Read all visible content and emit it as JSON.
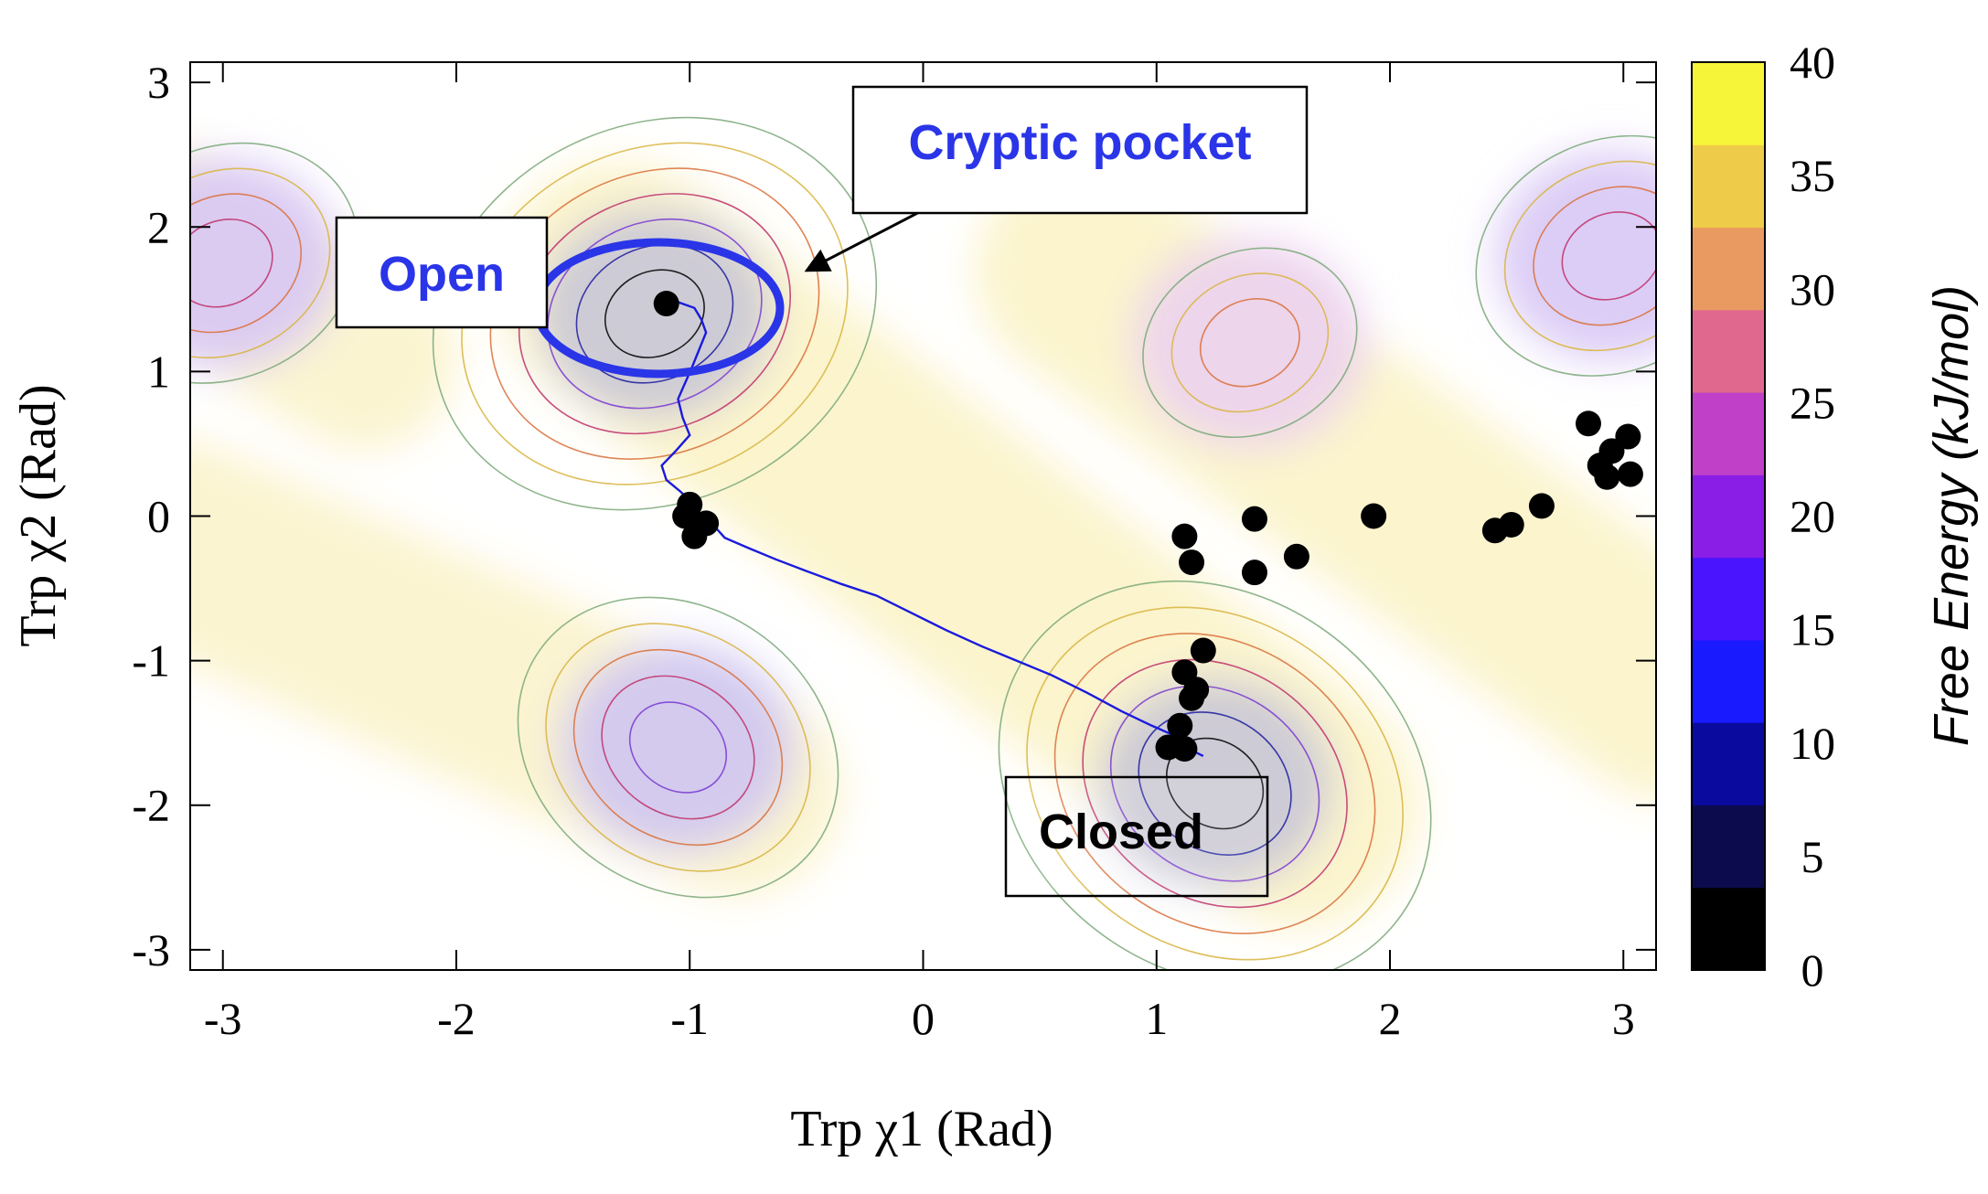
{
  "chart_data": {
    "type": "heatmap",
    "title": "",
    "xlabel": "Trp χ1 (Rad)",
    "ylabel": "Trp χ2 (Rad)",
    "xlim": [
      -3.14,
      3.14
    ],
    "ylim": [
      -3.14,
      3.14
    ],
    "x_ticks": [
      "-3",
      "-2",
      "-1",
      "0",
      "1",
      "2",
      "3"
    ],
    "y_ticks": [
      "-3",
      "-2",
      "-1",
      "0",
      "1",
      "2",
      "3"
    ],
    "colorbar": {
      "label": "Free Energy (kJ/mol)",
      "range": [
        0,
        40
      ],
      "ticks": [
        "0",
        "5",
        "10",
        "15",
        "20",
        "25",
        "30",
        "35",
        "40"
      ],
      "colors": [
        "#000000",
        "#0b0b4d",
        "#0a0a9e",
        "#1a1aff",
        "#4b14ff",
        "#8a1ee6",
        "#c040c8",
        "#e0688e",
        "#e89a60",
        "#eecb48",
        "#f7f53a"
      ]
    },
    "basins": [
      {
        "x": -1.15,
        "y": 1.4,
        "min_energy": 0
      },
      {
        "x": 1.25,
        "y": -1.85,
        "min_energy": 0
      },
      {
        "x": -1.05,
        "y": -1.6,
        "min_energy": 15
      },
      {
        "x": -3.0,
        "y": 1.75,
        "min_energy": 20
      },
      {
        "x": 2.95,
        "y": 1.8,
        "min_energy": 20
      },
      {
        "x": 1.4,
        "y": 1.2,
        "min_energy": 28
      }
    ],
    "points": [
      [
        -1.1,
        1.47
      ],
      [
        -1.0,
        0.08
      ],
      [
        -1.02,
        0.0
      ],
      [
        -0.93,
        -0.05
      ],
      [
        -0.98,
        -0.14
      ],
      [
        1.12,
        -0.14
      ],
      [
        1.15,
        -0.32
      ],
      [
        1.42,
        -0.02
      ],
      [
        1.42,
        -0.39
      ],
      [
        1.6,
        -0.28
      ],
      [
        1.93,
        0.0
      ],
      [
        1.2,
        -0.93
      ],
      [
        1.12,
        -1.08
      ],
      [
        1.17,
        -1.2
      ],
      [
        1.15,
        -1.26
      ],
      [
        1.1,
        -1.45
      ],
      [
        1.05,
        -1.6
      ],
      [
        1.12,
        -1.61
      ],
      [
        2.45,
        -0.1
      ],
      [
        2.52,
        -0.06
      ],
      [
        2.65,
        0.07
      ],
      [
        2.85,
        0.64
      ],
      [
        2.9,
        0.35
      ],
      [
        2.95,
        0.45
      ],
      [
        2.93,
        0.27
      ],
      [
        3.02,
        0.55
      ],
      [
        3.03,
        0.29
      ]
    ],
    "pathway": [
      [
        -1.1,
        1.47
      ],
      [
        -1.05,
        1.48
      ],
      [
        -0.98,
        1.44
      ],
      [
        -0.95,
        1.36
      ],
      [
        -0.93,
        1.27
      ],
      [
        -0.96,
        1.15
      ],
      [
        -0.99,
        1.03
      ],
      [
        -1.02,
        0.92
      ],
      [
        -1.05,
        0.81
      ],
      [
        -1.03,
        0.68
      ],
      [
        -1.0,
        0.56
      ],
      [
        -1.06,
        0.45
      ],
      [
        -1.12,
        0.35
      ],
      [
        -1.1,
        0.25
      ],
      [
        -1.04,
        0.17
      ],
      [
        -0.98,
        0.08
      ],
      [
        -0.95,
        0.0
      ],
      [
        -0.9,
        -0.06
      ],
      [
        -0.85,
        -0.15
      ],
      [
        -0.75,
        -0.22
      ],
      [
        -0.63,
        -0.3
      ],
      [
        -0.5,
        -0.38
      ],
      [
        -0.35,
        -0.47
      ],
      [
        -0.2,
        -0.55
      ],
      [
        -0.05,
        -0.67
      ],
      [
        0.1,
        -0.79
      ],
      [
        0.25,
        -0.9
      ],
      [
        0.4,
        -1.0
      ],
      [
        0.55,
        -1.1
      ],
      [
        0.7,
        -1.22
      ],
      [
        0.85,
        -1.35
      ],
      [
        0.98,
        -1.45
      ],
      [
        1.08,
        -1.52
      ],
      [
        1.15,
        -1.62
      ],
      [
        1.2,
        -1.66
      ]
    ],
    "annotations": [
      {
        "text": "Open",
        "color": "#2a35e8"
      },
      {
        "text": "Cryptic pocket",
        "color": "#2a35e8"
      },
      {
        "text": "Closed",
        "color": "#000000"
      }
    ]
  }
}
